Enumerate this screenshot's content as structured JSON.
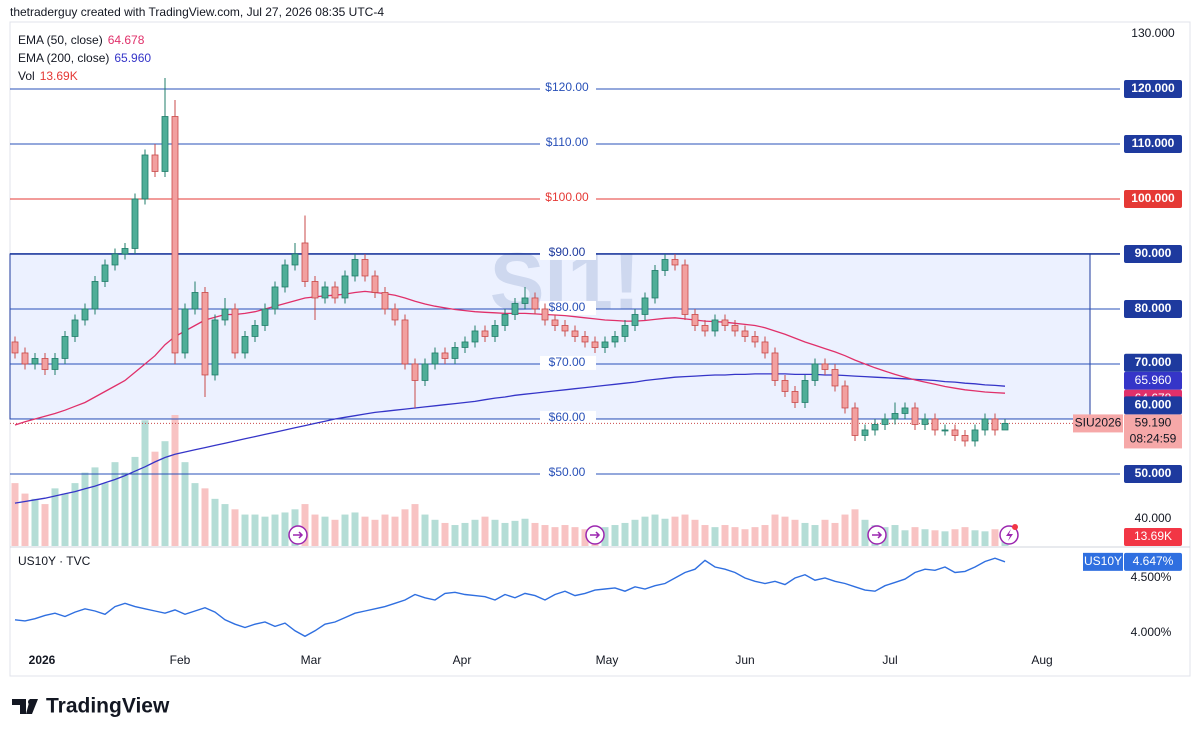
{
  "chart_data": {
    "type": "candlestick",
    "header": "thetraderguy created with TradingView.com, Jul 27, 2026 08:35 UTC-4",
    "watermark": "SI1!",
    "symbol_label": "SIU2026",
    "last_price_label": "59.190",
    "countdown": "08:24:59",
    "brand": "TradingView",
    "xlim": [
      -0.5,
      110.5
    ],
    "xticks": [
      {
        "value": 2.7,
        "label": "2026"
      },
      {
        "value": 16.5,
        "label": "Feb"
      },
      {
        "value": 29.6,
        "label": "Mar"
      },
      {
        "value": 44.7,
        "label": "Apr"
      },
      {
        "value": 59.2,
        "label": "May"
      },
      {
        "value": 73,
        "label": "Jun"
      },
      {
        "value": 87.5,
        "label": "Jul"
      },
      {
        "value": 102.7,
        "label": "Aug"
      }
    ],
    "ylim": [
      36.9,
      132.18
    ],
    "yticks": [
      {
        "value": 130,
        "label": "130.000"
      },
      {
        "value": 120,
        "label": "120.000"
      },
      {
        "value": 110,
        "label": "110.000"
      },
      {
        "value": 100,
        "label": "100.000"
      },
      {
        "value": 90,
        "label": "90.000"
      },
      {
        "value": 80,
        "label": "80.000"
      },
      {
        "value": 70,
        "label": "70.000"
      },
      {
        "value": 60,
        "label": "60.000"
      },
      {
        "value": 50,
        "label": "50.000"
      },
      {
        "value": 40,
        "label": "40.000"
      }
    ],
    "hlines": [
      {
        "value": 120,
        "label": "$120.00",
        "color": "#2850b8"
      },
      {
        "value": 110,
        "label": "$110.00",
        "color": "#2850b8"
      },
      {
        "value": 100,
        "label": "$100.00",
        "color": "#e53935"
      },
      {
        "value": 90,
        "label": "$90.00",
        "color": "#1e3a9e"
      },
      {
        "value": 80,
        "label": "$80.00",
        "color": "#2850b8"
      },
      {
        "value": 70,
        "label": "$70.00",
        "color": "#2850b8"
      },
      {
        "value": 60,
        "label": "$60.00",
        "color": "#2850b8"
      },
      {
        "value": 50,
        "label": "$50.00",
        "color": "#2850b8"
      }
    ],
    "box": {
      "top": 90,
      "bottom": 60,
      "color": "#1e3a9e"
    },
    "up_color": "#4fae98",
    "down_color": "#f2a0a0",
    "ohlc": [
      [
        74,
        75,
        71,
        72
      ],
      [
        72,
        73,
        69,
        70
      ],
      [
        70,
        72,
        69,
        71
      ],
      [
        71,
        72,
        68,
        69
      ],
      [
        69,
        72,
        68,
        71
      ],
      [
        71,
        76,
        70,
        75
      ],
      [
        75,
        79,
        74,
        78
      ],
      [
        78,
        81,
        77,
        80
      ],
      [
        80,
        86,
        79,
        85
      ],
      [
        85,
        89,
        84,
        88
      ],
      [
        88,
        91,
        87,
        90
      ],
      [
        90,
        92,
        89,
        91
      ],
      [
        91,
        101,
        90,
        100
      ],
      [
        100,
        109,
        99,
        108
      ],
      [
        108,
        110,
        104,
        105
      ],
      [
        105,
        122,
        104,
        115
      ],
      [
        115,
        118,
        70,
        72
      ],
      [
        72,
        81,
        71,
        80
      ],
      [
        80,
        85,
        79,
        83
      ],
      [
        83,
        84,
        64,
        68
      ],
      [
        68,
        79,
        67,
        78
      ],
      [
        78,
        82,
        77,
        80
      ],
      [
        80,
        81,
        71,
        72
      ],
      [
        72,
        76,
        71,
        75
      ],
      [
        75,
        78,
        74,
        77
      ],
      [
        77,
        81,
        76,
        80
      ],
      [
        80,
        85,
        79,
        84
      ],
      [
        84,
        89,
        83,
        88
      ],
      [
        88,
        92,
        87,
        90
      ],
      [
        92,
        97,
        84,
        85
      ],
      [
        85,
        86,
        78,
        82
      ],
      [
        82,
        85,
        81,
        84
      ],
      [
        84,
        85,
        81,
        82
      ],
      [
        82,
        87,
        81,
        86
      ],
      [
        86,
        90,
        85,
        89
      ],
      [
        89,
        90,
        85,
        86
      ],
      [
        86,
        87,
        82,
        83
      ],
      [
        83,
        84,
        79,
        80
      ],
      [
        80,
        81,
        77,
        78
      ],
      [
        78,
        79,
        69,
        70
      ],
      [
        70,
        71,
        62,
        67
      ],
      [
        67,
        71,
        66,
        70
      ],
      [
        70,
        73,
        69,
        72
      ],
      [
        72,
        73,
        70,
        71
      ],
      [
        71,
        74,
        70,
        73
      ],
      [
        73,
        75,
        72,
        74
      ],
      [
        74,
        77,
        73,
        76
      ],
      [
        76,
        77,
        74,
        75
      ],
      [
        75,
        78,
        74,
        77
      ],
      [
        77,
        80,
        76,
        79
      ],
      [
        79,
        82,
        78,
        81
      ],
      [
        81,
        84,
        80,
        82
      ],
      [
        82,
        83,
        79,
        80
      ],
      [
        80,
        81,
        77,
        78
      ],
      [
        78,
        79,
        76,
        77
      ],
      [
        77,
        78,
        75,
        76
      ],
      [
        76,
        77,
        74,
        75
      ],
      [
        75,
        76,
        73,
        74
      ],
      [
        74,
        75,
        72,
        73
      ],
      [
        73,
        75,
        72,
        74
      ],
      [
        74,
        76,
        73,
        75
      ],
      [
        75,
        78,
        74,
        77
      ],
      [
        77,
        80,
        76,
        79
      ],
      [
        79,
        83,
        78,
        82
      ],
      [
        82,
        88,
        81,
        87
      ],
      [
        87,
        90,
        86,
        89
      ],
      [
        89,
        90,
        87,
        88
      ],
      [
        88,
        89,
        78,
        79
      ],
      [
        79,
        80,
        76,
        77
      ],
      [
        77,
        78,
        75,
        76
      ],
      [
        76,
        79,
        75,
        78
      ],
      [
        78,
        79,
        76,
        77
      ],
      [
        77,
        78,
        75,
        76
      ],
      [
        76,
        77,
        74,
        75
      ],
      [
        75,
        76,
        73,
        74
      ],
      [
        74,
        75,
        71,
        72
      ],
      [
        72,
        73,
        66,
        67
      ],
      [
        67,
        68,
        64,
        65
      ],
      [
        65,
        66,
        62,
        63
      ],
      [
        63,
        68,
        62,
        67
      ],
      [
        67,
        71,
        66,
        70
      ],
      [
        70,
        71,
        68,
        69
      ],
      [
        69,
        70,
        65,
        66
      ],
      [
        66,
        67,
        61,
        62
      ],
      [
        62,
        63,
        56,
        57
      ],
      [
        57,
        59,
        56,
        58
      ],
      [
        58,
        60,
        57,
        59
      ],
      [
        59,
        61,
        58,
        60
      ],
      [
        60,
        63,
        59,
        61
      ],
      [
        61,
        63,
        60,
        62
      ],
      [
        62,
        63,
        58,
        59
      ],
      [
        59,
        61,
        58,
        60
      ],
      [
        60,
        61,
        57,
        58
      ],
      [
        58,
        59,
        57,
        58
      ],
      [
        58,
        59,
        56,
        57
      ],
      [
        57,
        58,
        55,
        56
      ],
      [
        56,
        59,
        55,
        58
      ],
      [
        58,
        61,
        57,
        60
      ],
      [
        60,
        61,
        57,
        58
      ],
      [
        58,
        60,
        58,
        59.19
      ]
    ],
    "ema50": {
      "name": "EMA (50, close)",
      "color": "#e0306a",
      "values": [
        58.9,
        59.5,
        60,
        60.5,
        61,
        61.6,
        62.3,
        63,
        64,
        65,
        66,
        67,
        68.5,
        70,
        71.5,
        73.5,
        75,
        76,
        77,
        78,
        78.5,
        79,
        79,
        79.2,
        79.5,
        80,
        80.5,
        81,
        81.5,
        82,
        82.2,
        82.4,
        82.5,
        82.7,
        83,
        83.2,
        83,
        82.8,
        82.5,
        82,
        81.4,
        80.9,
        80.5,
        80.2,
        79.9,
        79.7,
        79.5,
        79.4,
        79.3,
        79.2,
        79.2,
        79.2,
        79.1,
        79,
        78.9,
        78.8,
        78.6,
        78.4,
        78.2,
        78,
        77.9,
        77.8,
        77.8,
        77.9,
        78.1,
        78.3,
        78.4,
        78.2,
        78,
        77.8,
        77.7,
        77.6,
        77.4,
        77.2,
        77,
        76.6,
        76,
        75.4,
        74.7,
        74,
        73.4,
        72.8,
        72.2,
        71.5,
        70.7,
        70,
        69.3,
        68.7,
        68.1,
        67.6,
        67.1,
        66.7,
        66.3,
        65.9,
        65.6,
        65.3,
        65.1,
        64.9,
        64.8,
        64.678
      ]
    },
    "ema200": {
      "name": "EMA (200, close)",
      "color": "#3535c8",
      "last_label": "65.960",
      "values": [
        44.7,
        45,
        45.3,
        45.6,
        46,
        46.4,
        46.8,
        47.3,
        47.8,
        48.4,
        49,
        49.7,
        50.5,
        51.3,
        52.2,
        53,
        53.6,
        54,
        54.4,
        54.8,
        55.2,
        55.6,
        56,
        56.4,
        56.8,
        57.2,
        57.6,
        58,
        58.4,
        58.8,
        59.2,
        59.6,
        60,
        60.3,
        60.6,
        60.9,
        61.2,
        61.4,
        61.6,
        61.8,
        62,
        62.2,
        62.4,
        62.6,
        62.8,
        63,
        63.2,
        63.5,
        63.8,
        64,
        64.3,
        64.5,
        64.7,
        64.9,
        65.1,
        65.3,
        65.5,
        65.7,
        65.9,
        66.1,
        66.3,
        66.5,
        66.7,
        67,
        67.2,
        67.4,
        67.6,
        67.7,
        67.8,
        67.9,
        68,
        68,
        68.1,
        68.1,
        68.2,
        68.2,
        68.2,
        68.2,
        68.1,
        68.1,
        68.1,
        68,
        68,
        67.9,
        67.8,
        67.7,
        67.6,
        67.5,
        67.4,
        67.3,
        67.2,
        67.1,
        67,
        66.8,
        66.7,
        66.5,
        66.4,
        66.2,
        66.1,
        65.96
      ]
    },
    "volume": {
      "name": "Vol",
      "last_label": "13.69K",
      "ylim": [
        0,
        500
      ],
      "up_color": "#b4ddd6",
      "down_color": "#f8c3c3",
      "values": [
        60,
        50,
        45,
        40,
        55,
        50,
        60,
        70,
        75,
        60,
        80,
        70,
        85,
        120,
        90,
        100,
        125,
        80,
        60,
        55,
        45,
        40,
        35,
        30,
        30,
        28,
        30,
        32,
        35,
        40,
        30,
        28,
        25,
        30,
        32,
        28,
        25,
        30,
        28,
        35,
        40,
        30,
        25,
        22,
        20,
        22,
        25,
        28,
        25,
        22,
        24,
        26,
        22,
        20,
        18,
        20,
        18,
        16,
        15,
        18,
        20,
        22,
        25,
        28,
        30,
        26,
        28,
        30,
        25,
        20,
        18,
        20,
        18,
        16,
        18,
        20,
        30,
        28,
        25,
        22,
        20,
        25,
        22,
        30,
        35,
        25,
        20,
        18,
        20,
        15,
        18,
        16,
        15,
        14,
        16,
        18,
        15,
        14,
        16,
        13.69
      ]
    },
    "us10y": {
      "name": "US10Y · TVC",
      "tag": "US10Y",
      "color": "#2f6fe0",
      "last_label": "4.647%",
      "ylim": [
        3.845,
        4.773
      ],
      "yticks": [
        {
          "value": 4.5,
          "label": "4.500%"
        },
        {
          "value": 4,
          "label": "4.000%"
        }
      ],
      "values": [
        4.12,
        4.11,
        4.13,
        4.16,
        4.18,
        4.15,
        4.19,
        4.22,
        4.2,
        4.17,
        4.24,
        4.27,
        4.24,
        4.22,
        4.2,
        4.18,
        4.21,
        4.17,
        4.2,
        4.23,
        4.19,
        4.12,
        4.08,
        4.05,
        4.08,
        4.1,
        4.06,
        4.09,
        4.02,
        3.97,
        4.02,
        4.08,
        4.1,
        4.14,
        4.18,
        4.2,
        4.22,
        4.24,
        4.27,
        4.3,
        4.35,
        4.32,
        4.3,
        4.36,
        4.37,
        4.35,
        4.34,
        4.33,
        4.3,
        4.35,
        4.32,
        4.36,
        4.34,
        4.3,
        4.35,
        4.38,
        4.34,
        4.36,
        4.39,
        4.4,
        4.41,
        4.38,
        4.42,
        4.4,
        4.43,
        4.45,
        4.5,
        4.55,
        4.58,
        4.66,
        4.6,
        4.58,
        4.55,
        4.5,
        4.47,
        4.45,
        4.47,
        4.44,
        4.5,
        4.53,
        4.48,
        4.5,
        4.47,
        4.45,
        4.42,
        4.39,
        4.38,
        4.43,
        4.46,
        4.49,
        4.55,
        4.58,
        4.57,
        4.6,
        4.55,
        4.56,
        4.6,
        4.65,
        4.68,
        4.647
      ]
    }
  }
}
